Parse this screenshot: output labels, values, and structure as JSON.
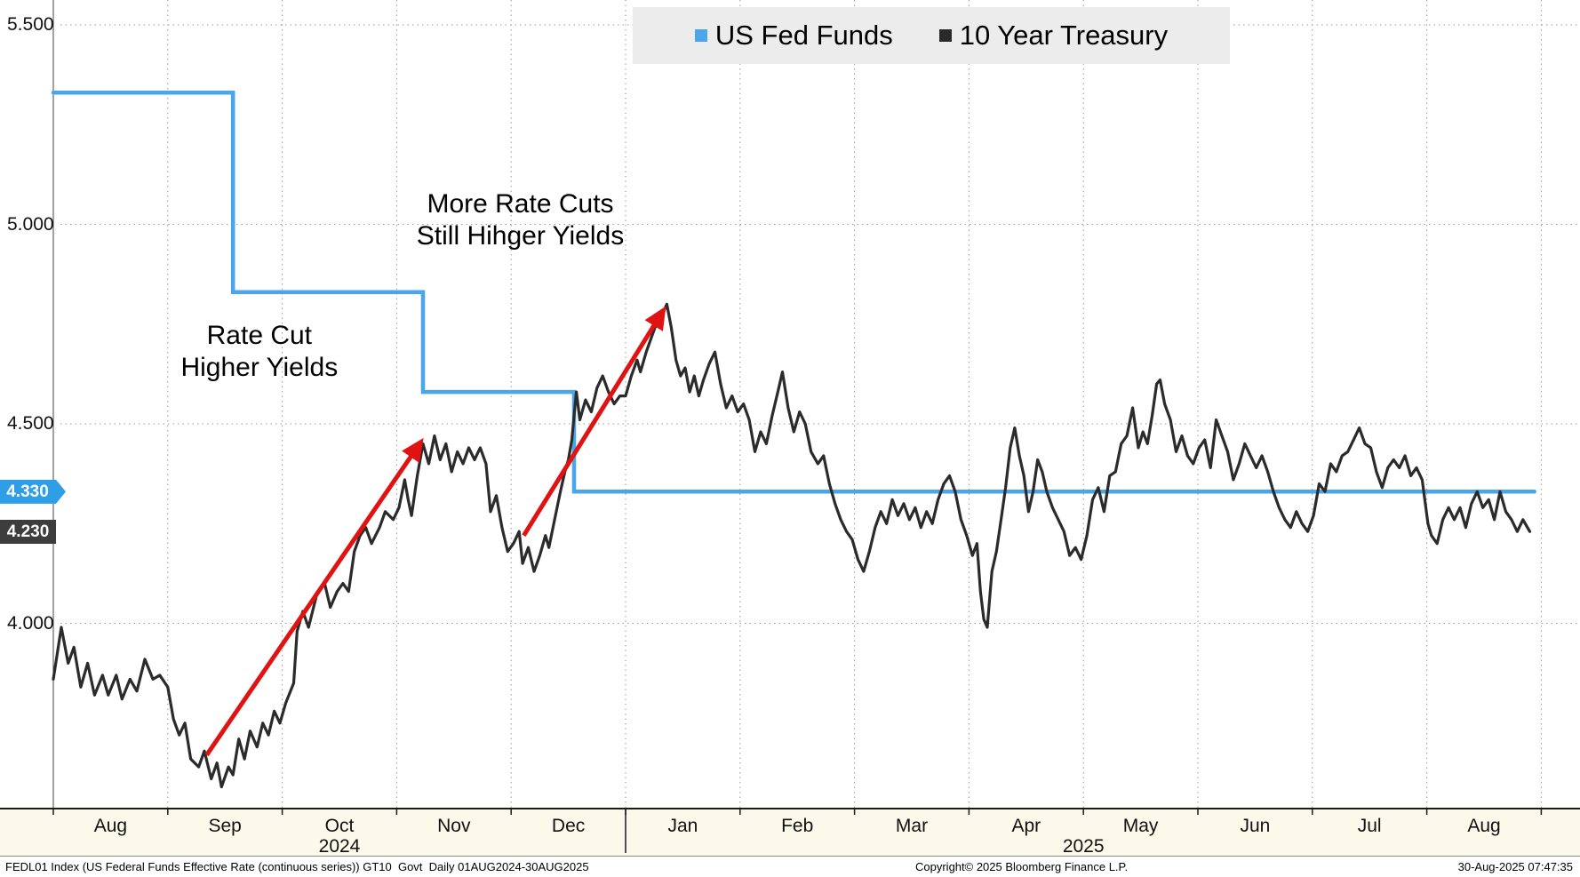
{
  "chart_data": {
    "type": "line",
    "title": "",
    "grid": "dotted",
    "x_axis": {
      "unit": "month index, 0 = 01 Aug 2024, each month = 1 unit",
      "months": [
        "Aug",
        "Sep",
        "Oct",
        "Nov",
        "Dec",
        "Jan",
        "Feb",
        "Mar",
        "Apr",
        "May",
        "Jun",
        "Jul",
        "Aug"
      ],
      "years": [
        {
          "label": "2024",
          "index": 2.5
        },
        {
          "label": "2025",
          "index": 9.0
        }
      ]
    },
    "y_axis": {
      "ylim": [
        3.54,
        5.56
      ],
      "ticks": [
        {
          "label": "5.500",
          "value": 5.5
        },
        {
          "label": "5.000",
          "value": 5.0
        },
        {
          "label": "4.500",
          "value": 4.5
        },
        {
          "label": "4.000",
          "value": 4.0
        }
      ]
    },
    "legend": {
      "position": "top",
      "entries": [
        "US Fed Funds",
        "10 Year Treasury"
      ]
    },
    "series": [
      {
        "name": "US Fed Funds",
        "color": "#4aa5ea",
        "style": "step",
        "last_value": 4.33,
        "points": [
          [
            0,
            5.33
          ],
          [
            1.57,
            5.33
          ],
          [
            1.57,
            4.83
          ],
          [
            3.23,
            4.83
          ],
          [
            3.23,
            4.58
          ],
          [
            4.55,
            4.58
          ],
          [
            4.55,
            4.33
          ],
          [
            12.94,
            4.33
          ]
        ]
      },
      {
        "name": "10 Year Treasury",
        "color": "#2b2b2b",
        "style": "line",
        "last_value": 4.23,
        "points": [
          [
            0,
            3.86
          ],
          [
            0.07,
            3.99
          ],
          [
            0.13,
            3.9
          ],
          [
            0.18,
            3.94
          ],
          [
            0.24,
            3.84
          ],
          [
            0.3,
            3.9
          ],
          [
            0.36,
            3.82
          ],
          [
            0.43,
            3.87
          ],
          [
            0.48,
            3.82
          ],
          [
            0.55,
            3.87
          ],
          [
            0.6,
            3.81
          ],
          [
            0.67,
            3.86
          ],
          [
            0.73,
            3.83
          ],
          [
            0.8,
            3.91
          ],
          [
            0.87,
            3.86
          ],
          [
            0.93,
            3.87
          ],
          [
            1,
            3.84
          ],
          [
            1.05,
            3.76
          ],
          [
            1.1,
            3.72
          ],
          [
            1.15,
            3.75
          ],
          [
            1.2,
            3.66
          ],
          [
            1.27,
            3.64
          ],
          [
            1.32,
            3.68
          ],
          [
            1.38,
            3.61
          ],
          [
            1.43,
            3.65
          ],
          [
            1.47,
            3.59
          ],
          [
            1.53,
            3.64
          ],
          [
            1.57,
            3.62
          ],
          [
            1.62,
            3.71
          ],
          [
            1.67,
            3.66
          ],
          [
            1.72,
            3.73
          ],
          [
            1.78,
            3.69
          ],
          [
            1.83,
            3.75
          ],
          [
            1.88,
            3.72
          ],
          [
            1.93,
            3.78
          ],
          [
            1.98,
            3.75
          ],
          [
            2.03,
            3.8
          ],
          [
            2.1,
            3.85
          ],
          [
            2.13,
            3.98
          ],
          [
            2.18,
            4.03
          ],
          [
            2.23,
            3.99
          ],
          [
            2.3,
            4.07
          ],
          [
            2.37,
            4.1
          ],
          [
            2.42,
            4.04
          ],
          [
            2.48,
            4.08
          ],
          [
            2.53,
            4.1
          ],
          [
            2.58,
            4.08
          ],
          [
            2.63,
            4.18
          ],
          [
            2.68,
            4.22
          ],
          [
            2.73,
            4.24
          ],
          [
            2.78,
            4.2
          ],
          [
            2.85,
            4.24
          ],
          [
            2.9,
            4.28
          ],
          [
            2.97,
            4.26
          ],
          [
            3.02,
            4.29
          ],
          [
            3.07,
            4.36
          ],
          [
            3.1,
            4.31
          ],
          [
            3.13,
            4.27
          ],
          [
            3.18,
            4.37
          ],
          [
            3.23,
            4.45
          ],
          [
            3.28,
            4.4
          ],
          [
            3.33,
            4.47
          ],
          [
            3.38,
            4.41
          ],
          [
            3.43,
            4.45
          ],
          [
            3.48,
            4.38
          ],
          [
            3.53,
            4.43
          ],
          [
            3.58,
            4.4
          ],
          [
            3.63,
            4.44
          ],
          [
            3.68,
            4.41
          ],
          [
            3.73,
            4.44
          ],
          [
            3.78,
            4.4
          ],
          [
            3.82,
            4.28
          ],
          [
            3.87,
            4.32
          ],
          [
            3.92,
            4.24
          ],
          [
            3.97,
            4.18
          ],
          [
            4.02,
            4.2
          ],
          [
            4.07,
            4.23
          ],
          [
            4.1,
            4.15
          ],
          [
            4.15,
            4.19
          ],
          [
            4.2,
            4.13
          ],
          [
            4.25,
            4.17
          ],
          [
            4.3,
            4.22
          ],
          [
            4.33,
            4.19
          ],
          [
            4.38,
            4.26
          ],
          [
            4.43,
            4.33
          ],
          [
            4.47,
            4.38
          ],
          [
            4.5,
            4.41
          ],
          [
            4.53,
            4.46
          ],
          [
            4.55,
            4.52
          ],
          [
            4.57,
            4.58
          ],
          [
            4.6,
            4.51
          ],
          [
            4.65,
            4.56
          ],
          [
            4.7,
            4.53
          ],
          [
            4.75,
            4.59
          ],
          [
            4.8,
            4.62
          ],
          [
            4.85,
            4.58
          ],
          [
            4.9,
            4.55
          ],
          [
            4.95,
            4.57
          ],
          [
            5,
            4.57
          ],
          [
            5.05,
            4.62
          ],
          [
            5.1,
            4.66
          ],
          [
            5.13,
            4.63
          ],
          [
            5.18,
            4.68
          ],
          [
            5.23,
            4.72
          ],
          [
            5.28,
            4.76
          ],
          [
            5.33,
            4.78
          ],
          [
            5.36,
            4.8
          ],
          [
            5.4,
            4.74
          ],
          [
            5.44,
            4.66
          ],
          [
            5.48,
            4.62
          ],
          [
            5.52,
            4.64
          ],
          [
            5.56,
            4.58
          ],
          [
            5.6,
            4.62
          ],
          [
            5.64,
            4.57
          ],
          [
            5.68,
            4.61
          ],
          [
            5.73,
            4.65
          ],
          [
            5.78,
            4.68
          ],
          [
            5.83,
            4.6
          ],
          [
            5.88,
            4.54
          ],
          [
            5.93,
            4.57
          ],
          [
            5.98,
            4.53
          ],
          [
            6.03,
            4.55
          ],
          [
            6.08,
            4.51
          ],
          [
            6.13,
            4.43
          ],
          [
            6.18,
            4.48
          ],
          [
            6.23,
            4.45
          ],
          [
            6.28,
            4.52
          ],
          [
            6.33,
            4.58
          ],
          [
            6.37,
            4.63
          ],
          [
            6.42,
            4.54
          ],
          [
            6.47,
            4.48
          ],
          [
            6.52,
            4.53
          ],
          [
            6.57,
            4.5
          ],
          [
            6.62,
            4.43
          ],
          [
            6.68,
            4.4
          ],
          [
            6.73,
            4.42
          ],
          [
            6.78,
            4.35
          ],
          [
            6.83,
            4.3
          ],
          [
            6.88,
            4.26
          ],
          [
            6.93,
            4.23
          ],
          [
            6.98,
            4.21
          ],
          [
            7.03,
            4.16
          ],
          [
            7.08,
            4.13
          ],
          [
            7.13,
            4.18
          ],
          [
            7.18,
            4.24
          ],
          [
            7.23,
            4.28
          ],
          [
            7.28,
            4.25
          ],
          [
            7.33,
            4.31
          ],
          [
            7.38,
            4.27
          ],
          [
            7.43,
            4.3
          ],
          [
            7.48,
            4.26
          ],
          [
            7.53,
            4.29
          ],
          [
            7.58,
            4.24
          ],
          [
            7.63,
            4.28
          ],
          [
            7.68,
            4.25
          ],
          [
            7.73,
            4.31
          ],
          [
            7.78,
            4.35
          ],
          [
            7.83,
            4.37
          ],
          [
            7.88,
            4.33
          ],
          [
            7.93,
            4.26
          ],
          [
            7.98,
            4.22
          ],
          [
            8.03,
            4.17
          ],
          [
            8.07,
            4.2
          ],
          [
            8.1,
            4.08
          ],
          [
            8.13,
            4.01
          ],
          [
            8.16,
            3.99
          ],
          [
            8.2,
            4.13
          ],
          [
            8.24,
            4.18
          ],
          [
            8.28,
            4.26
          ],
          [
            8.32,
            4.34
          ],
          [
            8.36,
            4.44
          ],
          [
            8.4,
            4.49
          ],
          [
            8.44,
            4.42
          ],
          [
            8.48,
            4.37
          ],
          [
            8.52,
            4.28
          ],
          [
            8.56,
            4.33
          ],
          [
            8.6,
            4.41
          ],
          [
            8.64,
            4.38
          ],
          [
            8.68,
            4.33
          ],
          [
            8.73,
            4.29
          ],
          [
            8.78,
            4.26
          ],
          [
            8.83,
            4.23
          ],
          [
            8.88,
            4.17
          ],
          [
            8.93,
            4.19
          ],
          [
            8.98,
            4.16
          ],
          [
            9.03,
            4.22
          ],
          [
            9.08,
            4.31
          ],
          [
            9.13,
            4.34
          ],
          [
            9.18,
            4.28
          ],
          [
            9.23,
            4.37
          ],
          [
            9.28,
            4.38
          ],
          [
            9.33,
            4.45
          ],
          [
            9.38,
            4.47
          ],
          [
            9.43,
            4.54
          ],
          [
            9.48,
            4.44
          ],
          [
            9.52,
            4.48
          ],
          [
            9.56,
            4.45
          ],
          [
            9.6,
            4.52
          ],
          [
            9.64,
            4.6
          ],
          [
            9.67,
            4.61
          ],
          [
            9.71,
            4.55
          ],
          [
            9.76,
            4.51
          ],
          [
            9.81,
            4.43
          ],
          [
            9.86,
            4.47
          ],
          [
            9.91,
            4.42
          ],
          [
            9.96,
            4.4
          ],
          [
            10.01,
            4.44
          ],
          [
            10.06,
            4.46
          ],
          [
            10.11,
            4.39
          ],
          [
            10.16,
            4.51
          ],
          [
            10.21,
            4.47
          ],
          [
            10.26,
            4.43
          ],
          [
            10.31,
            4.36
          ],
          [
            10.36,
            4.4
          ],
          [
            10.41,
            4.45
          ],
          [
            10.46,
            4.42
          ],
          [
            10.51,
            4.39
          ],
          [
            10.56,
            4.42
          ],
          [
            10.61,
            4.38
          ],
          [
            10.66,
            4.33
          ],
          [
            10.71,
            4.29
          ],
          [
            10.76,
            4.26
          ],
          [
            10.81,
            4.24
          ],
          [
            10.86,
            4.28
          ],
          [
            10.91,
            4.25
          ],
          [
            10.96,
            4.23
          ],
          [
            11.01,
            4.27
          ],
          [
            11.06,
            4.35
          ],
          [
            11.11,
            4.33
          ],
          [
            11.16,
            4.4
          ],
          [
            11.21,
            4.38
          ],
          [
            11.26,
            4.42
          ],
          [
            11.31,
            4.43
          ],
          [
            11.36,
            4.46
          ],
          [
            11.41,
            4.49
          ],
          [
            11.46,
            4.45
          ],
          [
            11.51,
            4.44
          ],
          [
            11.56,
            4.38
          ],
          [
            11.61,
            4.34
          ],
          [
            11.66,
            4.39
          ],
          [
            11.71,
            4.41
          ],
          [
            11.76,
            4.39
          ],
          [
            11.81,
            4.42
          ],
          [
            11.86,
            4.37
          ],
          [
            11.91,
            4.39
          ],
          [
            11.96,
            4.36
          ],
          [
            12.01,
            4.25
          ],
          [
            12.04,
            4.22
          ],
          [
            12.09,
            4.2
          ],
          [
            12.14,
            4.26
          ],
          [
            12.19,
            4.29
          ],
          [
            12.24,
            4.26
          ],
          [
            12.29,
            4.29
          ],
          [
            12.34,
            4.24
          ],
          [
            12.39,
            4.3
          ],
          [
            12.44,
            4.33
          ],
          [
            12.49,
            4.29
          ],
          [
            12.54,
            4.31
          ],
          [
            12.59,
            4.26
          ],
          [
            12.64,
            4.33
          ],
          [
            12.69,
            4.28
          ],
          [
            12.74,
            4.26
          ],
          [
            12.79,
            4.23
          ],
          [
            12.84,
            4.26
          ],
          [
            12.9,
            4.23
          ]
        ]
      }
    ]
  },
  "badges": [
    {
      "label": "4.330",
      "value": 4.33,
      "color": "#2e9fe6"
    },
    {
      "label": "4.230",
      "value": 4.23,
      "color": "#3d3d3d"
    }
  ],
  "annotations": [
    {
      "lines": [
        "Rate Cut",
        "Higher Yields"
      ],
      "x": 1.8,
      "v": 4.68
    },
    {
      "lines": [
        "More Rate Cuts",
        "Still Hihger Yields"
      ],
      "x": 4.08,
      "v": 5.01
    }
  ],
  "arrows": {
    "color": "#e11212",
    "items": [
      {
        "from": {
          "x": 1.34,
          "v": 3.67
        },
        "to": {
          "x": 3.2,
          "v": 4.45
        }
      },
      {
        "from": {
          "x": 4.11,
          "v": 4.22
        },
        "to": {
          "x": 5.32,
          "v": 4.78
        }
      }
    ]
  },
  "footer": {
    "left": "FEDL01 Index (US Federal Funds Effective Rate (continuous series)) GT10  Govt  Daily 01AUG2024-30AUG2025",
    "center": "Copyright© 2025 Bloomberg Finance L.P.",
    "right": "30-Aug-2025 07:47:35"
  }
}
